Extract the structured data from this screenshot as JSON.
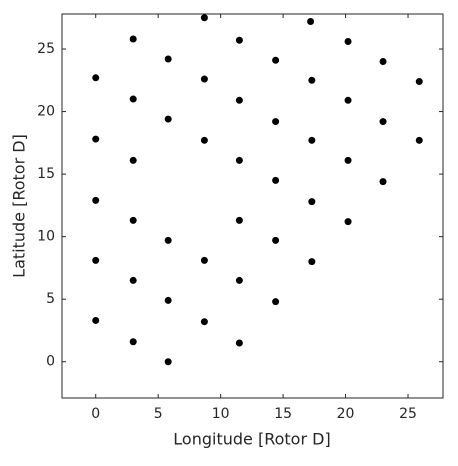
{
  "chart_data": {
    "type": "scatter",
    "xlabel": "Longitude [Rotor D]",
    "ylabel": "Latitude [Rotor D]",
    "color": "#000000",
    "x": [
      8.7,
      17.2,
      3.0,
      11.5,
      20.2,
      5.8,
      14.4,
      23.0,
      0,
      8.7,
      17.3,
      25.9,
      3.0,
      11.5,
      20.2,
      5.8,
      14.4,
      23.0,
      0,
      8.7,
      17.3,
      25.9,
      3.0,
      11.5,
      20.2,
      14.4,
      23.0,
      0,
      17.3,
      3.0,
      11.5,
      20.2,
      5.8,
      14.4,
      0,
      8.7,
      17.3,
      3.0,
      11.5,
      5.8,
      14.4,
      0,
      8.7,
      3.0,
      11.5,
      5.8
    ],
    "values": [
      27.5,
      27.2,
      25.8,
      25.7,
      25.6,
      24.2,
      24.1,
      24.0,
      22.7,
      22.6,
      22.5,
      22.4,
      21.0,
      20.9,
      20.9,
      19.4,
      19.2,
      19.2,
      17.8,
      17.7,
      17.7,
      17.7,
      16.1,
      16.1,
      16.1,
      14.5,
      14.4,
      12.9,
      12.8,
      11.3,
      11.3,
      11.2,
      9.7,
      9.7,
      8.1,
      8.1,
      8.0,
      6.5,
      6.5,
      4.9,
      4.8,
      3.3,
      3.2,
      1.6,
      1.5,
      0
    ],
    "xlim": [
      -2.7,
      27.8
    ],
    "xticks": [
      0,
      5,
      10,
      15,
      20,
      25
    ],
    "ylim": [
      -2.9,
      27.8
    ],
    "yticks": [
      0,
      5,
      10,
      15,
      20,
      25
    ],
    "grid": false
  }
}
